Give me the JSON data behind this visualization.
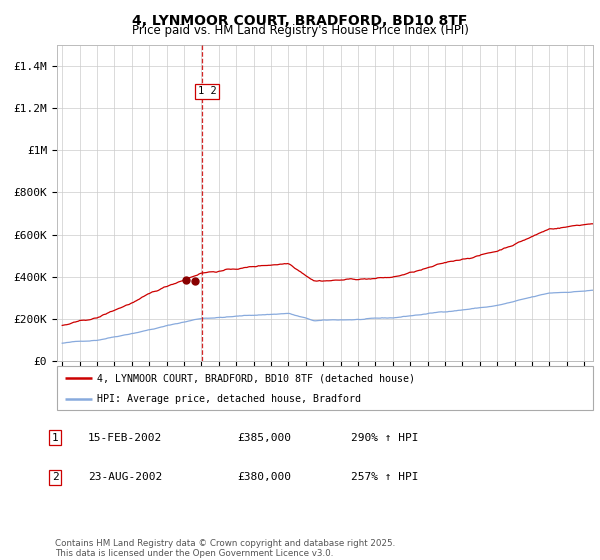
{
  "title": "4, LYNMOOR COURT, BRADFORD, BD10 8TF",
  "subtitle": "Price paid vs. HM Land Registry's House Price Index (HPI)",
  "title_fontsize": 10,
  "subtitle_fontsize": 8.5,
  "ylim": [
    0,
    1500000
  ],
  "yticks": [
    0,
    200000,
    400000,
    600000,
    800000,
    1000000,
    1200000,
    1400000
  ],
  "ytick_labels": [
    "£0",
    "£200K",
    "£400K",
    "£600K",
    "£800K",
    "£1M",
    "£1.2M",
    "£1.4M"
  ],
  "background_color": "#ffffff",
  "grid_color": "#cccccc",
  "red_line_color": "#cc0000",
  "blue_line_color": "#88aadd",
  "dashed_line_color": "#cc0000",
  "sale1_year": 2002.12,
  "sale1_price": 385000,
  "sale2_year": 2002.64,
  "sale2_price": 380000,
  "vline_x": 2003.05,
  "legend_red_label": "4, LYNMOOR COURT, BRADFORD, BD10 8TF (detached house)",
  "legend_blue_label": "HPI: Average price, detached house, Bradford",
  "table_row1": [
    "1",
    "15-FEB-2002",
    "£385,000",
    "290% ↑ HPI"
  ],
  "table_row2": [
    "2",
    "23-AUG-2002",
    "£380,000",
    "257% ↑ HPI"
  ],
  "footnote": "Contains HM Land Registry data © Crown copyright and database right 2025.\nThis data is licensed under the Open Government Licence v3.0.",
  "xstart": 1995,
  "xend": 2025
}
